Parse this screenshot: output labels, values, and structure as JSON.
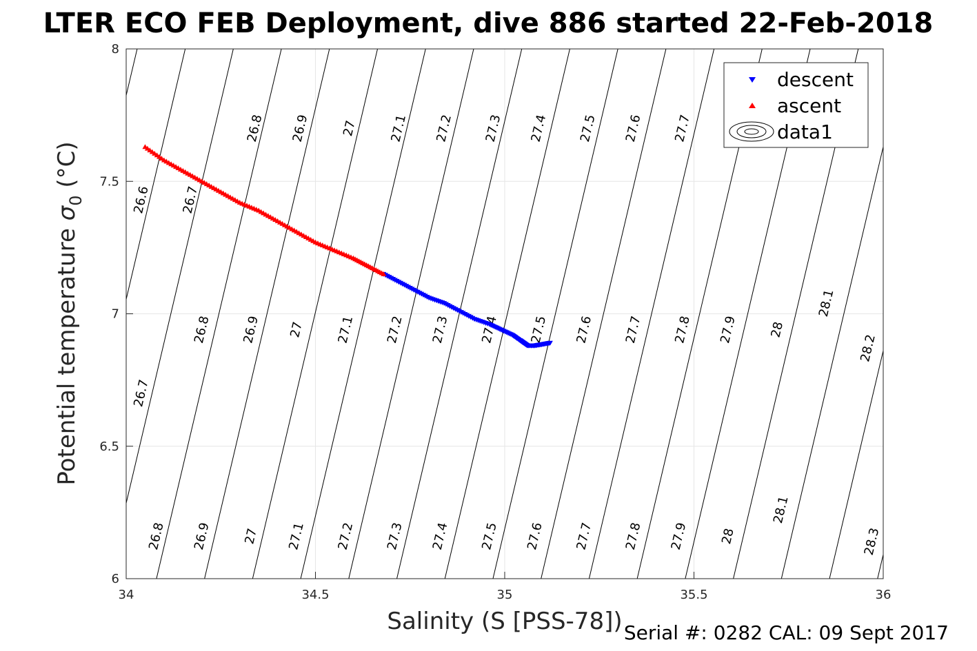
{
  "chart_data": {
    "type": "scatter",
    "title": "LTER ECO FEB Deployment, dive 886 started 22-Feb-2018",
    "xlabel": "Salinity (S [PSS-78])",
    "ylabel": "Potential temperature σ₀ (°C)",
    "ylabel_main": "Potential temperature ",
    "ylabel_sigma": "σ",
    "ylabel_sub": "0",
    "ylabel_unit": " (°C)",
    "xlim": [
      34,
      36
    ],
    "ylim": [
      6,
      8
    ],
    "xticks": [
      34,
      34.5,
      35,
      35.5,
      36
    ],
    "xtick_labels": [
      "34",
      "34.5",
      "35",
      "35.5",
      "36"
    ],
    "yticks": [
      6,
      6.5,
      7,
      7.5,
      8
    ],
    "ytick_labels": [
      "6",
      "6.5",
      "7",
      "7.5",
      "8"
    ],
    "grid": true,
    "legend_position": "top-right",
    "legend": [
      "descent",
      "ascent",
      "data1"
    ],
    "series": [
      {
        "name": "descent",
        "marker": "triangle-down",
        "color": "#0000ff",
        "x": [
          34.68,
          34.72,
          34.76,
          34.8,
          34.84,
          34.88,
          34.92,
          34.96,
          34.99,
          35.02,
          35.04,
          35.05,
          35.06,
          35.08,
          35.1,
          35.12
        ],
        "y": [
          7.15,
          7.12,
          7.09,
          7.06,
          7.04,
          7.01,
          6.98,
          6.96,
          6.94,
          6.92,
          6.9,
          6.89,
          6.88,
          6.88,
          6.885,
          6.89
        ]
      },
      {
        "name": "ascent",
        "marker": "triangle-up",
        "color": "#ff0000",
        "x": [
          34.05,
          34.1,
          34.15,
          34.2,
          34.25,
          34.3,
          34.35,
          34.4,
          34.45,
          34.5,
          34.55,
          34.6,
          34.64,
          34.68
        ],
        "y": [
          7.63,
          7.58,
          7.54,
          7.5,
          7.46,
          7.42,
          7.39,
          7.35,
          7.31,
          7.27,
          7.24,
          7.21,
          7.18,
          7.15
        ]
      }
    ],
    "contours": {
      "name": "data1",
      "color": "#000000",
      "levels": [
        "26.6",
        "26.7",
        "26.8",
        "26.9",
        "27",
        "27.1",
        "27.2",
        "27.3",
        "27.4",
        "27.5",
        "27.6",
        "27.7",
        "27.8",
        "27.9",
        "28",
        "28.1",
        "28.2",
        "28.3"
      ],
      "labels": [
        {
          "text": "26.8",
          "x": 34.34,
          "y": 7.7
        },
        {
          "text": "26.9",
          "x": 34.46,
          "y": 7.7
        },
        {
          "text": "27",
          "x": 34.59,
          "y": 7.7
        },
        {
          "text": "27.1",
          "x": 34.72,
          "y": 7.7
        },
        {
          "text": "27.2",
          "x": 34.84,
          "y": 7.7
        },
        {
          "text": "27.3",
          "x": 34.97,
          "y": 7.7
        },
        {
          "text": "27.4",
          "x": 35.09,
          "y": 7.7
        },
        {
          "text": "27.5",
          "x": 35.22,
          "y": 7.7
        },
        {
          "text": "27.6",
          "x": 35.34,
          "y": 7.7
        },
        {
          "text": "27.7",
          "x": 35.47,
          "y": 7.7
        },
        {
          "text": "26.6",
          "x": 34.04,
          "y": 7.43
        },
        {
          "text": "26.7",
          "x": 34.17,
          "y": 7.43
        },
        {
          "text": "26.8",
          "x": 34.2,
          "y": 6.94
        },
        {
          "text": "26.9",
          "x": 34.33,
          "y": 6.94
        },
        {
          "text": "27",
          "x": 34.45,
          "y": 6.94
        },
        {
          "text": "27.1",
          "x": 34.58,
          "y": 6.94
        },
        {
          "text": "27.2",
          "x": 34.71,
          "y": 6.94
        },
        {
          "text": "27.3",
          "x": 34.83,
          "y": 6.94
        },
        {
          "text": "27.4",
          "x": 34.96,
          "y": 6.94
        },
        {
          "text": "27.5",
          "x": 35.09,
          "y": 6.94
        },
        {
          "text": "27.6",
          "x": 35.21,
          "y": 6.94
        },
        {
          "text": "27.7",
          "x": 35.34,
          "y": 6.94
        },
        {
          "text": "27.8",
          "x": 35.47,
          "y": 6.94
        },
        {
          "text": "27.9",
          "x": 35.59,
          "y": 6.94
        },
        {
          "text": "28",
          "x": 35.72,
          "y": 6.94
        },
        {
          "text": "28.1",
          "x": 35.85,
          "y": 7.04
        },
        {
          "text": "28.2",
          "x": 35.96,
          "y": 6.87
        },
        {
          "text": "26.7",
          "x": 34.04,
          "y": 6.7
        },
        {
          "text": "26.8",
          "x": 34.08,
          "y": 6.16
        },
        {
          "text": "26.9",
          "x": 34.2,
          "y": 6.16
        },
        {
          "text": "27",
          "x": 34.33,
          "y": 6.16
        },
        {
          "text": "27.1",
          "x": 34.45,
          "y": 6.16
        },
        {
          "text": "27.2",
          "x": 34.58,
          "y": 6.16
        },
        {
          "text": "27.3",
          "x": 34.71,
          "y": 6.16
        },
        {
          "text": "27.4",
          "x": 34.83,
          "y": 6.16
        },
        {
          "text": "27.5",
          "x": 34.96,
          "y": 6.16
        },
        {
          "text": "27.6",
          "x": 35.08,
          "y": 6.16
        },
        {
          "text": "27.7",
          "x": 35.21,
          "y": 6.16
        },
        {
          "text": "27.8",
          "x": 35.34,
          "y": 6.16
        },
        {
          "text": "27.9",
          "x": 35.46,
          "y": 6.16
        },
        {
          "text": "28",
          "x": 35.59,
          "y": 6.16
        },
        {
          "text": "28.1",
          "x": 35.73,
          "y": 6.26
        },
        {
          "text": "28.3",
          "x": 35.97,
          "y": 6.14
        }
      ]
    }
  },
  "footer": {
    "serial_text": "Serial #: 0282  CAL: 09 Sept 2017"
  }
}
